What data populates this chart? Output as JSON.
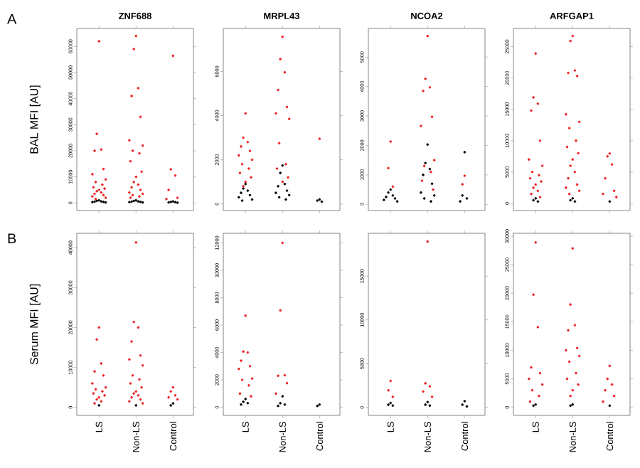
{
  "chart_data": [
    {
      "type": "scatter",
      "title": "ZNF688",
      "ylabel": "BAL MFI [AU]",
      "annotations": [
        "A"
      ],
      "marker": "circle",
      "tick_labels": "y",
      "categories": [
        "LS",
        "Non-LS",
        "Control"
      ],
      "ylim": [
        -2900,
        66900
      ],
      "yticks": [
        0,
        10000,
        20000,
        30000,
        40000,
        50000,
        60000
      ],
      "series": [
        {
          "color": "#000000",
          "x": [
            "LS",
            "LS",
            "LS",
            "LS",
            "LS",
            "LS",
            "LS",
            "Non-LS",
            "Non-LS",
            "Non-LS",
            "Non-LS",
            "Non-LS",
            "Non-LS",
            "Non-LS",
            "Control",
            "Control",
            "Control",
            "Control",
            "Control"
          ],
          "values": [
            1000,
            800,
            600,
            500,
            400,
            300,
            200,
            1000,
            800,
            600,
            500,
            400,
            300,
            200,
            600,
            400,
            300,
            200,
            100
          ]
        },
        {
          "color": "#ee2222",
          "x": [
            "LS",
            "LS",
            "LS",
            "LS",
            "LS",
            "LS",
            "LS",
            "LS",
            "LS",
            "LS",
            "LS",
            "LS",
            "LS",
            "LS",
            "LS",
            "LS",
            "LS",
            "LS",
            "LS",
            "Non-LS",
            "Non-LS",
            "Non-LS",
            "Non-LS",
            "Non-LS",
            "Non-LS",
            "Non-LS",
            "Non-LS",
            "Non-LS",
            "Non-LS",
            "Non-LS",
            "Non-LS",
            "Non-LS",
            "Non-LS",
            "Non-LS",
            "Non-LS",
            "Non-LS",
            "Non-LS",
            "Non-LS",
            "Non-LS",
            "Non-LS",
            "Control",
            "Control",
            "Control",
            "Control",
            "Control",
            "Control"
          ],
          "values": [
            62000,
            26500,
            20500,
            20000,
            13000,
            11000,
            9000,
            8000,
            7000,
            6000,
            5500,
            5000,
            4500,
            4000,
            3500,
            3000,
            2500,
            2000,
            1500,
            64000,
            59000,
            44000,
            41000,
            33000,
            24000,
            22000,
            20000,
            19000,
            16000,
            12000,
            10000,
            8000,
            7000,
            6000,
            5000,
            4000,
            3500,
            3000,
            2500,
            2000,
            56400,
            12900,
            10500,
            5000,
            2000,
            1500
          ]
        }
      ]
    },
    {
      "type": "scatter",
      "title": "MRPL43",
      "marker": "circle",
      "tick_labels": "y",
      "categories": [
        "LS",
        "Non-LS",
        "Control"
      ],
      "ylim": [
        -300,
        7950
      ],
      "yticks": [
        0,
        2000,
        4000,
        6000
      ],
      "series": [
        {
          "color": "#000000",
          "x": [
            "LS",
            "LS",
            "LS",
            "LS",
            "LS",
            "LS",
            "LS",
            "LS",
            "Non-LS",
            "Non-LS",
            "Non-LS",
            "Non-LS",
            "Non-LS",
            "Non-LS",
            "Non-LS",
            "Non-LS",
            "Non-LS",
            "Control",
            "Control",
            "Control"
          ],
          "values": [
            900,
            700,
            600,
            500,
            400,
            300,
            200,
            150,
            1740,
            1400,
            900,
            800,
            600,
            500,
            400,
            300,
            200,
            200,
            150,
            100
          ]
        },
        {
          "color": "#ee2222",
          "x": [
            "LS",
            "LS",
            "LS",
            "LS",
            "LS",
            "LS",
            "LS",
            "LS",
            "LS",
            "LS",
            "LS",
            "LS",
            "LS",
            "Non-LS",
            "Non-LS",
            "Non-LS",
            "Non-LS",
            "Non-LS",
            "Non-LS",
            "Non-LS",
            "Non-LS",
            "Non-LS",
            "Non-LS",
            "Non-LS",
            "Non-LS",
            "Control"
          ],
          "values": [
            4100,
            3000,
            2800,
            2600,
            2400,
            2200,
            2000,
            1800,
            1600,
            1400,
            1200,
            1000,
            800,
            7570,
            6560,
            5960,
            5160,
            4390,
            4100,
            3850,
            2750,
            1800,
            1600,
            1200,
            1000,
            2950
          ]
        }
      ]
    },
    {
      "type": "scatter",
      "title": "NCOA2",
      "marker": "circle",
      "tick_labels": "y",
      "categories": [
        "LS",
        "Non-LS",
        "Control"
      ],
      "ylim": [
        -210,
        5970
      ],
      "yticks": [
        0,
        1000,
        2000,
        3000,
        4000,
        5000
      ],
      "series": [
        {
          "color": "#000000",
          "x": [
            "LS",
            "LS",
            "LS",
            "LS",
            "LS",
            "LS",
            "LS",
            "Non-LS",
            "Non-LS",
            "Non-LS",
            "Non-LS",
            "Non-LS",
            "Non-LS",
            "Non-LS",
            "Non-LS",
            "Non-LS",
            "Control",
            "Control",
            "Control",
            "Control"
          ],
          "values": [
            500,
            400,
            300,
            250,
            200,
            150,
            100,
            2030,
            1400,
            1200,
            1000,
            700,
            400,
            300,
            200,
            100,
            1770,
            300,
            200,
            100
          ]
        },
        {
          "color": "#ee2222",
          "x": [
            "LS",
            "LS",
            "LS",
            "Non-LS",
            "Non-LS",
            "Non-LS",
            "Non-LS",
            "Non-LS",
            "Non-LS",
            "Non-LS",
            "Non-LS",
            "Non-LS",
            "Non-LS",
            "Non-LS",
            "Control",
            "Control"
          ],
          "values": [
            2130,
            1230,
            600,
            5710,
            4260,
            3970,
            3850,
            2970,
            2660,
            1500,
            1300,
            1100,
            800,
            500,
            970,
            680
          ]
        }
      ]
    },
    {
      "type": "scatter",
      "title": "ARFGAP1",
      "marker": "circle",
      "tick_labels": "y",
      "categories": [
        "LS",
        "Non-LS",
        "Control"
      ],
      "ylim": [
        -1140,
        27900
      ],
      "yticks": [
        0,
        5000,
        10000,
        15000,
        20000,
        25000
      ],
      "series": [
        {
          "color": "#000000",
          "x": [
            "LS",
            "LS",
            "LS",
            "Non-LS",
            "Non-LS",
            "Non-LS",
            "Control"
          ],
          "values": [
            800,
            500,
            300,
            800,
            500,
            300,
            300
          ]
        },
        {
          "color": "#ee2222",
          "x": [
            "LS",
            "LS",
            "LS",
            "LS",
            "LS",
            "LS",
            "LS",
            "LS",
            "LS",
            "LS",
            "LS",
            "LS",
            "LS",
            "LS",
            "LS",
            "LS",
            "Non-LS",
            "Non-LS",
            "Non-LS",
            "Non-LS",
            "Non-LS",
            "Non-LS",
            "Non-LS",
            "Non-LS",
            "Non-LS",
            "Non-LS",
            "Non-LS",
            "Non-LS",
            "Non-LS",
            "Non-LS",
            "Non-LS",
            "Non-LS",
            "Non-LS",
            "Non-LS",
            "Non-LS",
            "Control",
            "Control",
            "Control",
            "Control",
            "Control",
            "Control",
            "Control"
          ],
          "values": [
            23900,
            16900,
            15900,
            14800,
            10000,
            7000,
            6000,
            5000,
            4500,
            4000,
            3500,
            3000,
            2500,
            2000,
            1500,
            1000,
            26700,
            25900,
            21200,
            20800,
            20300,
            14200,
            13000,
            12000,
            10000,
            9000,
            8000,
            7000,
            6000,
            5000,
            4000,
            3000,
            2500,
            2000,
            1500,
            7950,
            7500,
            6200,
            4000,
            2000,
            1500,
            1000
          ]
        }
      ]
    },
    {
      "type": "scatter",
      "ylabel": "Serum MFI [AU]",
      "annotations": [
        "B"
      ],
      "marker": "circle",
      "categories": [
        "LS",
        "Non-LS",
        "Control"
      ],
      "ylim": [
        -2000,
        43600
      ],
      "yticks": [
        0,
        10000,
        20000,
        30000,
        40000
      ],
      "series": [
        {
          "color": "#000000",
          "x": [
            "LS",
            "Non-LS",
            "Control",
            "Control"
          ],
          "values": [
            500,
            500,
            1000,
            500
          ]
        },
        {
          "color": "#ee2222",
          "x": [
            "LS",
            "LS",
            "LS",
            "LS",
            "LS",
            "LS",
            "LS",
            "LS",
            "LS",
            "LS",
            "LS",
            "LS",
            "LS",
            "LS",
            "LS",
            "Non-LS",
            "Non-LS",
            "Non-LS",
            "Non-LS",
            "Non-LS",
            "Non-LS",
            "Non-LS",
            "Non-LS",
            "Non-LS",
            "Non-LS",
            "Non-LS",
            "Non-LS",
            "Non-LS",
            "Non-LS",
            "Non-LS",
            "Non-LS",
            "Non-LS",
            "Non-LS",
            "Control",
            "Control",
            "Control",
            "Control",
            "Control"
          ],
          "values": [
            20000,
            17000,
            11000,
            9000,
            8000,
            6000,
            5000,
            4500,
            4000,
            3500,
            3000,
            2500,
            2000,
            1500,
            1000,
            41300,
            21400,
            20000,
            16500,
            13000,
            12000,
            10500,
            8000,
            7000,
            6000,
            5000,
            4000,
            3500,
            3000,
            2500,
            2000,
            1500,
            1000,
            5000,
            4000,
            3000,
            2500,
            2000
          ]
        }
      ]
    },
    {
      "type": "scatter",
      "marker": "circle",
      "categories": [
        "LS",
        "Non-LS",
        "Control"
      ],
      "ylim": [
        -590,
        12700
      ],
      "yticks": [
        0,
        2000,
        4000,
        6000,
        8000,
        10000,
        12000
      ],
      "series": [
        {
          "color": "#000000",
          "x": [
            "LS",
            "LS",
            "LS",
            "LS",
            "Non-LS",
            "Non-LS",
            "Non-LS",
            "Non-LS",
            "Control",
            "Control"
          ],
          "values": [
            600,
            400,
            300,
            200,
            800,
            300,
            200,
            100,
            200,
            100
          ]
        },
        {
          "color": "#ee2222",
          "x": [
            "LS",
            "LS",
            "LS",
            "LS",
            "LS",
            "LS",
            "LS",
            "LS",
            "LS",
            "LS",
            "LS",
            "Non-LS",
            "Non-LS",
            "Non-LS",
            "Non-LS",
            "Non-LS",
            "Non-LS"
          ],
          "values": [
            6690,
            4070,
            4000,
            3400,
            3000,
            2800,
            2100,
            2000,
            1600,
            1000,
            800,
            12000,
            7070,
            2340,
            2300,
            1760,
            1000
          ]
        }
      ]
    },
    {
      "type": "scatter",
      "marker": "circle",
      "categories": [
        "LS",
        "Non-LS",
        "Control"
      ],
      "ylim": [
        -920,
        19900
      ],
      "yticks": [
        0,
        5000,
        10000,
        15000
      ],
      "series": [
        {
          "color": "#000000",
          "x": [
            "LS",
            "LS",
            "LS",
            "Non-LS",
            "Non-LS",
            "Non-LS",
            "Control",
            "Control",
            "Control"
          ],
          "values": [
            500,
            300,
            200,
            600,
            300,
            200,
            700,
            300,
            100
          ]
        },
        {
          "color": "#ee2222",
          "x": [
            "LS",
            "LS",
            "LS",
            "Non-LS",
            "Non-LS",
            "Non-LS",
            "Non-LS",
            "Non-LS"
          ],
          "values": [
            3020,
            1940,
            1200,
            18950,
            2750,
            2400,
            1800,
            1200
          ]
        }
      ]
    },
    {
      "type": "scatter",
      "marker": "circle",
      "categories": [
        "LS",
        "Non-LS",
        "Control"
      ],
      "ylim": [
        -1400,
        30500
      ],
      "yticks": [
        0,
        5000,
        10000,
        15000,
        20000,
        25000,
        30000
      ],
      "series": [
        {
          "color": "#000000",
          "x": [
            "LS",
            "LS",
            "Non-LS",
            "Non-LS",
            "Control"
          ],
          "values": [
            500,
            300,
            500,
            300,
            300
          ]
        },
        {
          "color": "#ee2222",
          "x": [
            "LS",
            "LS",
            "LS",
            "LS",
            "LS",
            "LS",
            "LS",
            "LS",
            "LS",
            "LS",
            "Non-LS",
            "Non-LS",
            "Non-LS",
            "Non-LS",
            "Non-LS",
            "Non-LS",
            "Non-LS",
            "Non-LS",
            "Non-LS",
            "Non-LS",
            "Non-LS",
            "Non-LS",
            "Non-LS",
            "Control",
            "Control",
            "Control",
            "Control",
            "Control",
            "Control"
          ],
          "values": [
            28900,
            19750,
            14050,
            7000,
            6000,
            5000,
            4000,
            3000,
            2000,
            1000,
            27850,
            18020,
            14380,
            13500,
            10400,
            10000,
            9000,
            8000,
            6000,
            5000,
            4000,
            3000,
            2000,
            7270,
            5000,
            4000,
            3000,
            2000,
            1000
          ]
        }
      ]
    }
  ]
}
